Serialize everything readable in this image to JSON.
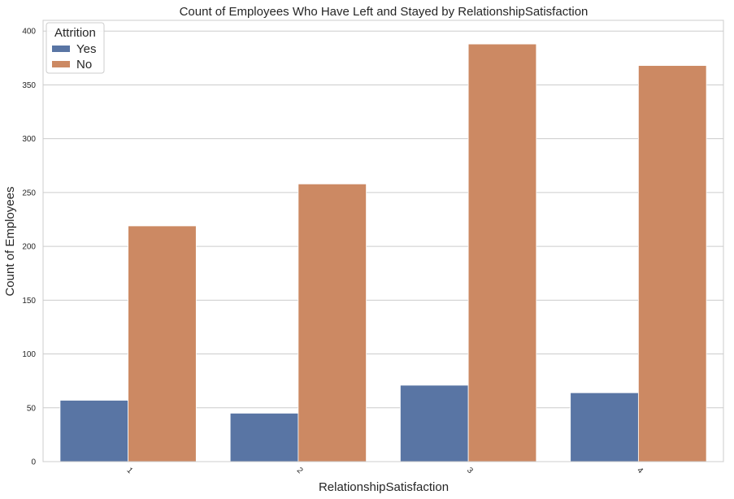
{
  "chart_data": {
    "type": "bar",
    "title": "Count of Employees Who Have Left and Stayed by RelationshipSatisfaction",
    "xlabel": "RelationshipSatisfaction",
    "ylabel": "Count of Employees",
    "categories": [
      "1",
      "2",
      "3",
      "4"
    ],
    "series": [
      {
        "name": "Yes",
        "values": [
          57,
          45,
          71,
          64
        ],
        "color": "#5975a4"
      },
      {
        "name": "No",
        "values": [
          219,
          258,
          388,
          368
        ],
        "color": "#cc8963"
      }
    ],
    "ylim": [
      0,
      410
    ],
    "yticks": [
      0,
      50,
      100,
      150,
      200,
      250,
      300,
      350,
      400
    ],
    "grid": true,
    "legend": {
      "title": "Attrition",
      "placement": "top-left"
    }
  }
}
